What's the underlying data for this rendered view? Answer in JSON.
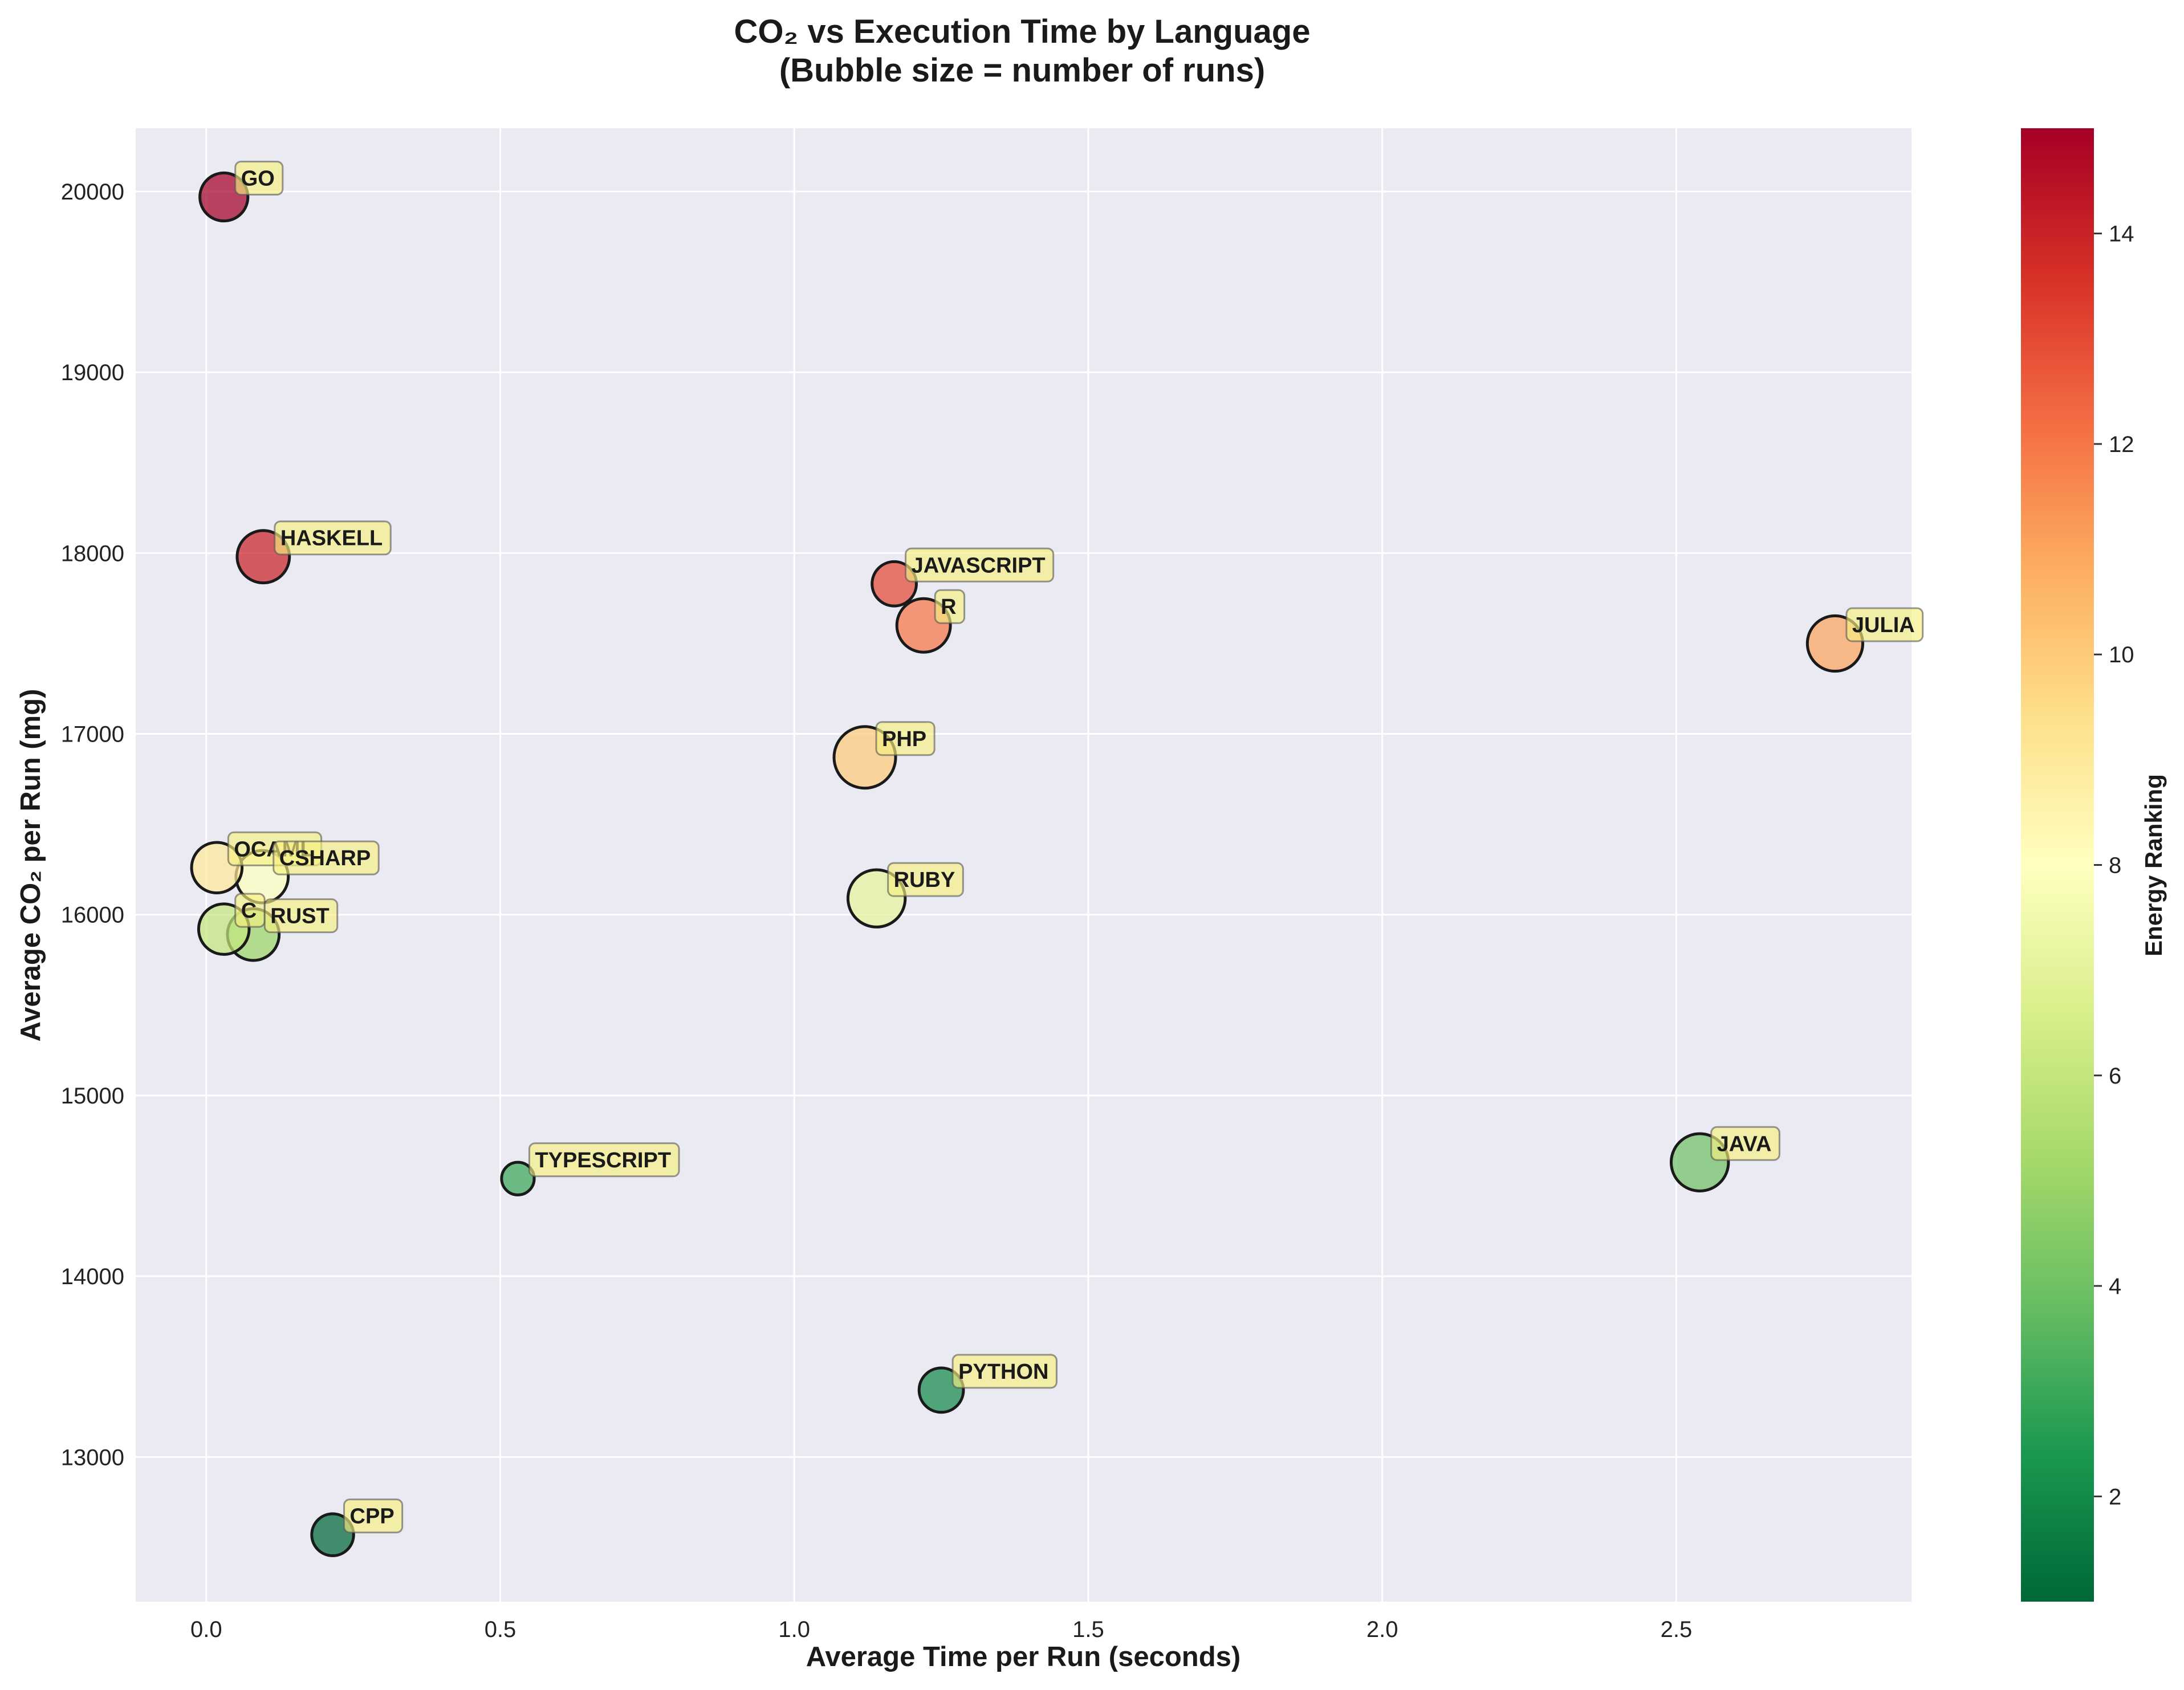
{
  "chart_data": {
    "type": "scatter",
    "title_line1": "CO₂ vs Execution Time by Language",
    "title_line2": "(Bubble size = number of runs)",
    "xlabel": "Average Time per Run (seconds)",
    "ylabel": "Average CO₂ per Run (mg)",
    "colorbar_label": "Energy Ranking",
    "xlim": [
      -0.12,
      2.9
    ],
    "ylim": [
      12200,
      20350
    ],
    "x_ticks": [
      0.0,
      0.5,
      1.0,
      1.5,
      2.0,
      2.5
    ],
    "x_tick_labels": [
      "0.0",
      "0.5",
      "1.0",
      "1.5",
      "2.0",
      "2.5"
    ],
    "y_ticks": [
      13000,
      14000,
      15000,
      16000,
      17000,
      18000,
      19000,
      20000
    ],
    "y_tick_labels": [
      "13000",
      "14000",
      "15000",
      "16000",
      "17000",
      "18000",
      "19000",
      "20000"
    ],
    "color_range": [
      1,
      15
    ],
    "colorbar_ticks": [
      2,
      4,
      6,
      8,
      10,
      12,
      14
    ],
    "colorbar_tick_labels": [
      "2",
      "4",
      "6",
      "8",
      "10",
      "12",
      "14"
    ],
    "colormap": "RdYlGn_r",
    "grid": true,
    "points": [
      {
        "label": "GO",
        "x": 0.03,
        "y": 19970,
        "rank": 15,
        "size": 0.78
      },
      {
        "label": "HASKELL",
        "x": 0.097,
        "y": 17980,
        "rank": 14,
        "size": 0.85
      },
      {
        "label": "JAVASCRIPT",
        "x": 1.17,
        "y": 17830,
        "rank": 13,
        "size": 0.72
      },
      {
        "label": "R",
        "x": 1.22,
        "y": 17600,
        "rank": 12,
        "size": 0.87
      },
      {
        "label": "JULIA",
        "x": 2.77,
        "y": 17500,
        "rank": 11,
        "size": 0.9
      },
      {
        "label": "PHP",
        "x": 1.12,
        "y": 16870,
        "rank": 10,
        "size": 1.0
      },
      {
        "label": "OCAML",
        "x": 0.018,
        "y": 16260,
        "rank": 9,
        "size": 0.82
      },
      {
        "label": "CSHARP",
        "x": 0.095,
        "y": 16210,
        "rank": 8,
        "size": 0.85
      },
      {
        "label": "RUBY",
        "x": 1.14,
        "y": 16090,
        "rank": 7,
        "size": 0.93
      },
      {
        "label": "C",
        "x": 0.03,
        "y": 15920,
        "rank": 6,
        "size": 0.82
      },
      {
        "label": "RUST",
        "x": 0.08,
        "y": 15890,
        "rank": 5,
        "size": 0.84
      },
      {
        "label": "JAVA",
        "x": 2.54,
        "y": 14630,
        "rank": 4,
        "size": 0.93
      },
      {
        "label": "TYPESCRIPT",
        "x": 0.53,
        "y": 14540,
        "rank": 3,
        "size": 0.53
      },
      {
        "label": "PYTHON",
        "x": 1.25,
        "y": 13370,
        "rank": 2,
        "size": 0.72
      },
      {
        "label": "CPP",
        "x": 0.215,
        "y": 12570,
        "rank": 1,
        "size": 0.68
      }
    ]
  }
}
